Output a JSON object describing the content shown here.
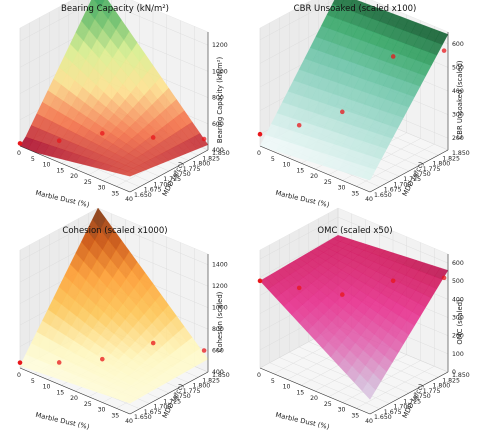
{
  "chart_data": [
    {
      "type": "surface3d",
      "title": "Bearing Capacity (kN/m²)",
      "xlabel": "Marble Dust (%)",
      "ylabel": "MDD (g/cc)",
      "zlabel": "Bearing Capacity (kN/m²)",
      "xlim": [
        0,
        40
      ],
      "ylim": [
        1.65,
        1.85
      ],
      "zlim": [
        400,
        1300
      ],
      "xticks": [
        "0",
        "5",
        "10",
        "15",
        "20",
        "25",
        "30",
        "35",
        "40"
      ],
      "yticks": [
        "1.650",
        "1.675",
        "1.700",
        "1.725",
        "1.750",
        "1.775",
        "1.800",
        "1.825",
        "1.850"
      ],
      "zticks": [
        "400",
        "600",
        "800",
        "1000",
        "1200"
      ],
      "colormap": "RdYlGn",
      "surface_corners": {
        "x0_y0": 380,
        "x40_y0": 520,
        "x0_y1": 1300,
        "x40_y1": 440
      },
      "points": [
        {
          "x": 0,
          "y": 1.65,
          "z": 420
        },
        {
          "x": 10,
          "y": 1.68,
          "z": 480
        },
        {
          "x": 20,
          "y": 1.72,
          "z": 560
        },
        {
          "x": 30,
          "y": 1.78,
          "z": 520
        },
        {
          "x": 40,
          "y": 1.84,
          "z": 500
        }
      ]
    },
    {
      "type": "surface3d",
      "title": "CBR Unsoaked (scaled x100)",
      "xlabel": "Marble Dust (%)",
      "ylabel": "MDD (g/cc)",
      "zlabel": "CBR Unsoaked (scaled)",
      "xlim": [
        0,
        40
      ],
      "ylim": [
        1.65,
        1.85
      ],
      "zlim": [
        150,
        650
      ],
      "xticks": [
        "0",
        "5",
        "10",
        "15",
        "20",
        "25",
        "30",
        "35",
        "40"
      ],
      "yticks": [
        "1.650",
        "1.675",
        "1.700",
        "1.725",
        "1.750",
        "1.775",
        "1.800",
        "1.825",
        "1.850"
      ],
      "zticks": [
        "200",
        "300",
        "400",
        "500",
        "600"
      ],
      "colormap": "BuGn",
      "surface_corners": {
        "x0_y0": 150,
        "x40_y0": 200,
        "x0_y1": 620,
        "x40_y1": 640
      },
      "points": [
        {
          "x": 0,
          "y": 1.65,
          "z": 200
        },
        {
          "x": 10,
          "y": 1.68,
          "z": 260
        },
        {
          "x": 20,
          "y": 1.72,
          "z": 330
        },
        {
          "x": 30,
          "y": 1.78,
          "z": 560
        },
        {
          "x": 40,
          "y": 1.84,
          "z": 580
        }
      ]
    },
    {
      "type": "surface3d",
      "title": "Cohesion (scaled x1000)",
      "xlabel": "Marble Dust (%)",
      "ylabel": "MDD (g/cc)",
      "zlabel": "Cohesion (scaled)",
      "xlim": [
        0,
        40
      ],
      "ylim": [
        1.65,
        1.85
      ],
      "zlim": [
        400,
        1500
      ],
      "xticks": [
        "0",
        "5",
        "10",
        "15",
        "20",
        "25",
        "30",
        "35",
        "40"
      ],
      "yticks": [
        "1.650",
        "1.675",
        "1.700",
        "1.725",
        "1.750",
        "1.775",
        "1.800",
        "1.825",
        "1.850"
      ],
      "zticks": [
        "400",
        "600",
        "800",
        "1000",
        "1200",
        "1400"
      ],
      "colormap": "YlOrBr",
      "surface_corners": {
        "x0_y0": 420,
        "x40_y0": 500,
        "x0_y1": 1500,
        "x40_y1": 520
      },
      "points": [
        {
          "x": 0,
          "y": 1.65,
          "z": 450
        },
        {
          "x": 10,
          "y": 1.68,
          "z": 500
        },
        {
          "x": 20,
          "y": 1.72,
          "z": 560
        },
        {
          "x": 30,
          "y": 1.78,
          "z": 700
        },
        {
          "x": 40,
          "y": 1.84,
          "z": 620
        }
      ]
    },
    {
      "type": "surface3d",
      "title": "OMC (scaled x50)",
      "xlabel": "Marble Dust (%)",
      "ylabel": "MDD (g/cc)",
      "zlabel": "OMC (scaled)",
      "xlim": [
        0,
        40
      ],
      "ylim": [
        1.65,
        1.85
      ],
      "zlim": [
        0,
        650
      ],
      "xticks": [
        "0",
        "5",
        "10",
        "15",
        "20",
        "25",
        "30",
        "35",
        "40"
      ],
      "yticks": [
        "1.650",
        "1.675",
        "1.700",
        "1.725",
        "1.750",
        "1.775",
        "1.800",
        "1.825",
        "1.850"
      ],
      "zticks": [
        "0",
        "100",
        "200",
        "300",
        "400",
        "500",
        "600"
      ],
      "colormap": "PuRd",
      "surface_corners": {
        "x0_y0": 480,
        "x40_y0": 80,
        "x0_y1": 500,
        "x40_y1": 560
      },
      "points": [
        {
          "x": 0,
          "y": 1.65,
          "z": 480
        },
        {
          "x": 10,
          "y": 1.68,
          "z": 470
        },
        {
          "x": 20,
          "y": 1.72,
          "z": 450
        },
        {
          "x": 30,
          "y": 1.78,
          "z": 520
        },
        {
          "x": 40,
          "y": 1.84,
          "z": 530
        }
      ]
    }
  ]
}
